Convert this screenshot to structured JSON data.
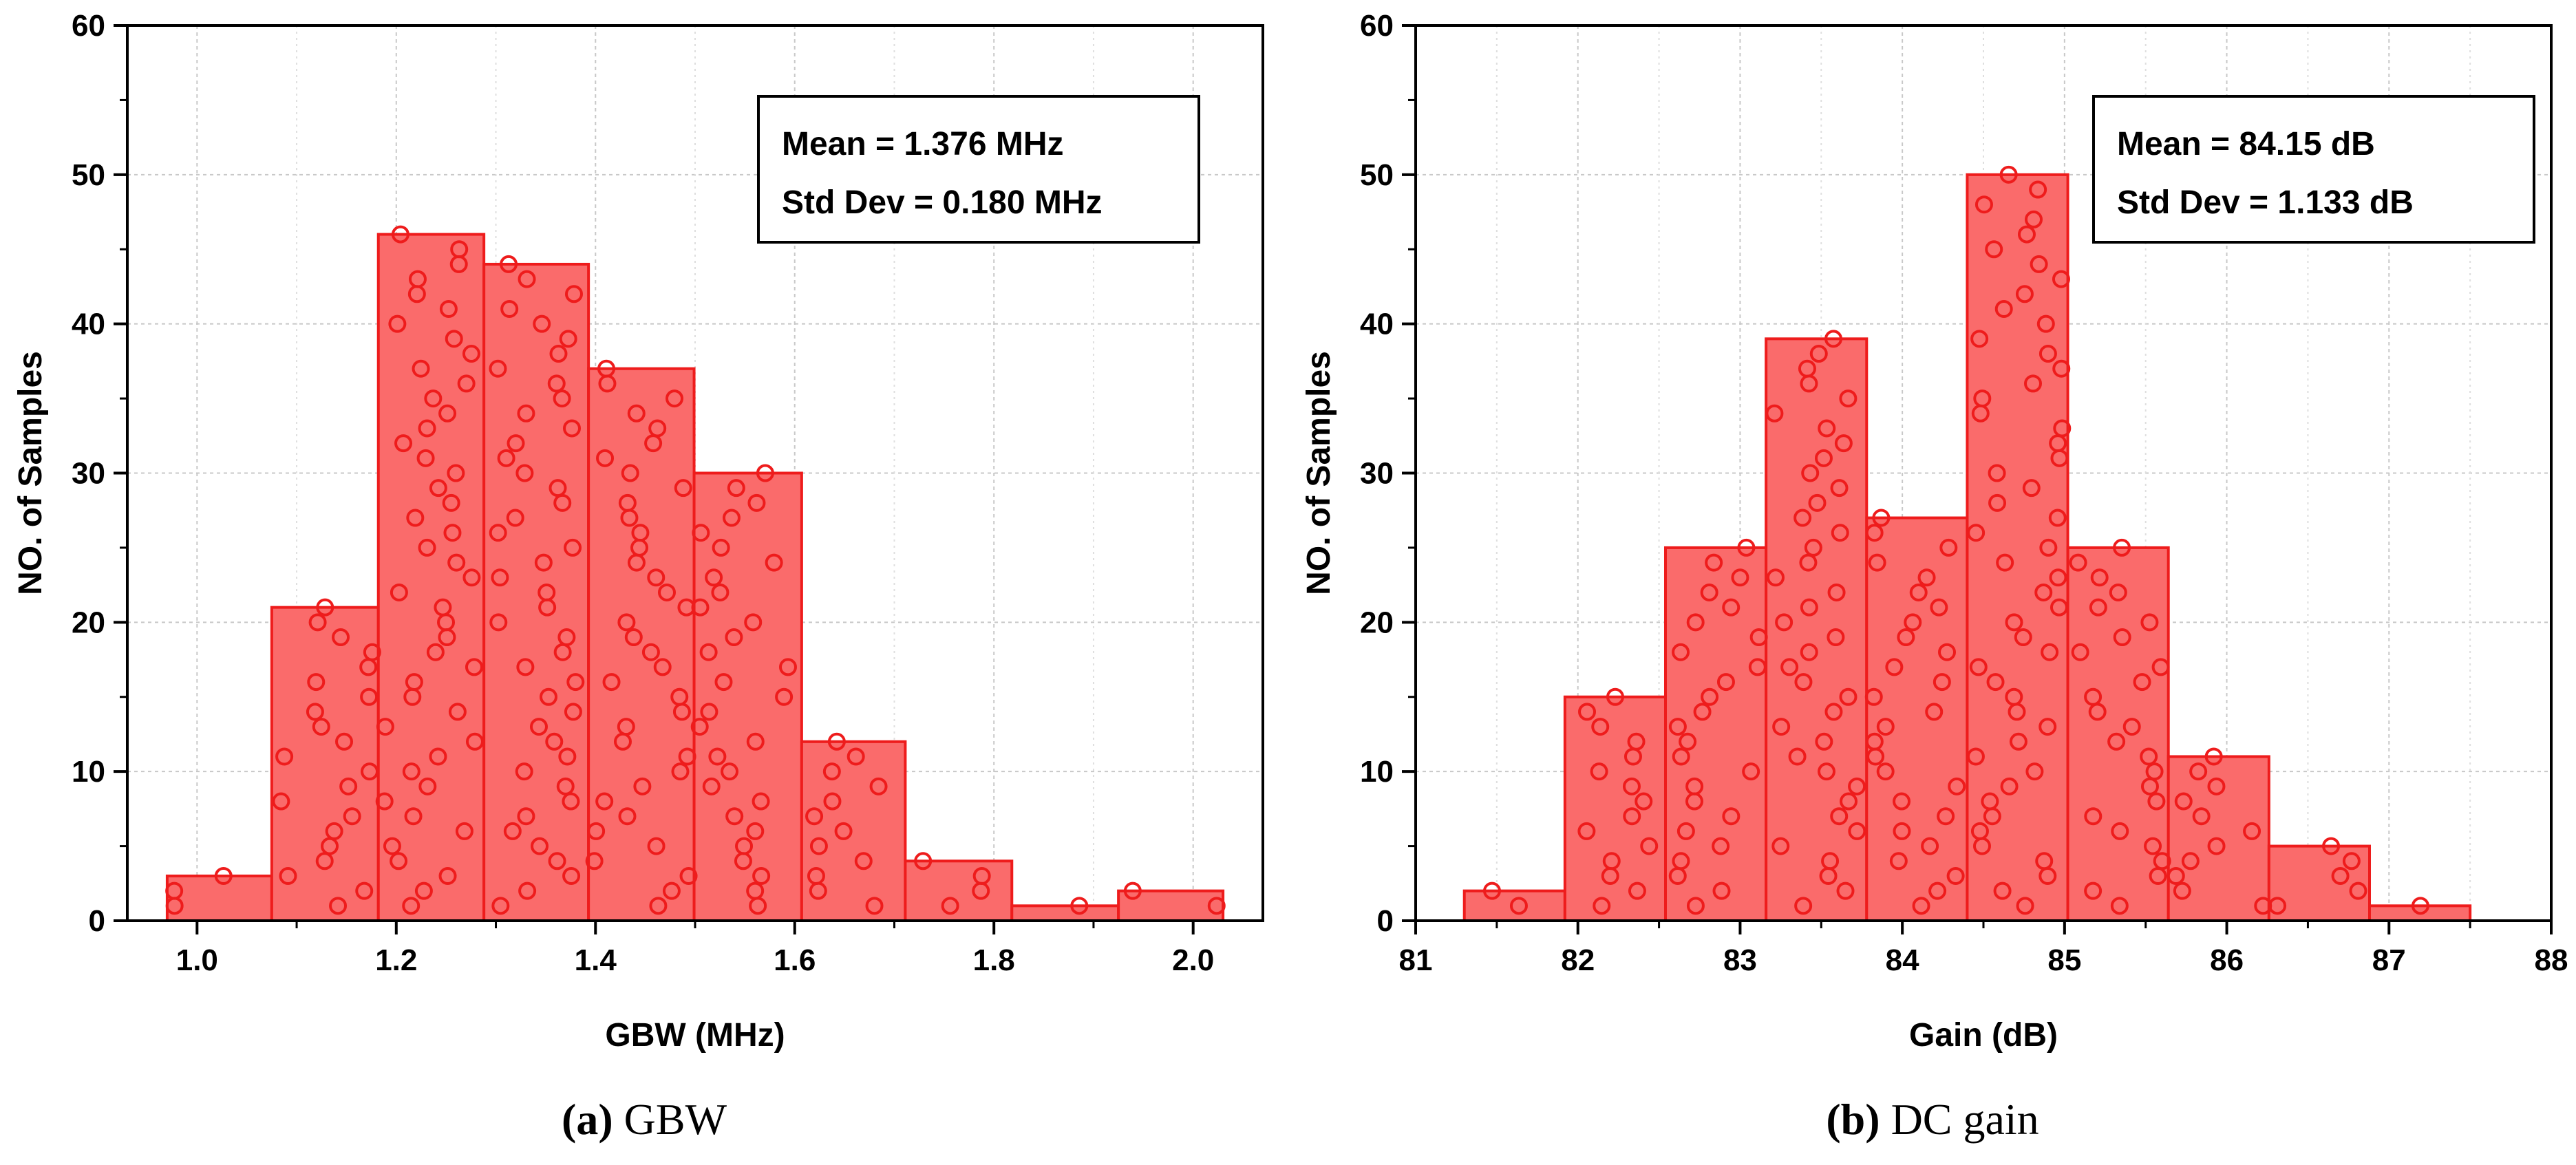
{
  "chart_data": [
    {
      "id": "a",
      "type": "bar",
      "xlabel": "GBW (MHz)",
      "ylabel": "NO. of Samples",
      "xlim": [
        0.93,
        2.07
      ],
      "ylim": [
        0,
        60
      ],
      "xticks": [
        "1.0",
        "1.2",
        "1.4",
        "1.6",
        "1.8",
        "2.0"
      ],
      "xtick_values": [
        1.0,
        1.2,
        1.4,
        1.6,
        1.8,
        2.0
      ],
      "yticks": [
        "0",
        "10",
        "20",
        "30",
        "40",
        "50",
        "60"
      ],
      "ytick_values": [
        0,
        10,
        20,
        30,
        40,
        50,
        60
      ],
      "bin_edges": [
        0.97,
        1.075,
        1.182,
        1.288,
        1.393,
        1.499,
        1.607,
        1.711,
        1.818,
        1.925,
        2.03
      ],
      "values": [
        3,
        21,
        46,
        44,
        37,
        30,
        12,
        4,
        1,
        2
      ],
      "legend": [
        "Mean = 1.376 MHz",
        "Std Dev = 0.180 MHz"
      ],
      "legend_position": "top-right",
      "grid": true,
      "bar_color": "#fa6b6b",
      "edge_color": "#ee1c1c",
      "marker_color": "#ee1c1c"
    },
    {
      "id": "b",
      "type": "bar",
      "xlabel": "Gain (dB)",
      "ylabel": "NO. of Samples",
      "xlim": [
        81,
        88
      ],
      "ylim": [
        0,
        60
      ],
      "xticks": [
        "81",
        "82",
        "83",
        "84",
        "85",
        "86",
        "87",
        "88"
      ],
      "xtick_values": [
        81,
        82,
        83,
        84,
        85,
        86,
        87,
        88
      ],
      "yticks": [
        "0",
        "10",
        "20",
        "30",
        "40",
        "50",
        "60"
      ],
      "ytick_values": [
        0,
        10,
        20,
        30,
        40,
        50,
        60
      ],
      "bin_edges": [
        81.3,
        81.92,
        82.54,
        83.16,
        83.78,
        84.4,
        85.02,
        85.64,
        86.26,
        86.88,
        87.5
      ],
      "values": [
        2,
        15,
        25,
        39,
        27,
        50,
        25,
        11,
        5,
        1
      ],
      "legend": [
        "Mean = 84.15 dB",
        "Std  Dev = 1.133 dB"
      ],
      "legend_position": "top-right",
      "grid": true,
      "bar_color": "#fa6b6b",
      "edge_color": "#ee1c1c",
      "marker_color": "#ee1c1c"
    }
  ],
  "captions": [
    {
      "letter": "(a)",
      "text": " GBW"
    },
    {
      "letter": "(b)",
      "text": " DC gain"
    }
  ]
}
